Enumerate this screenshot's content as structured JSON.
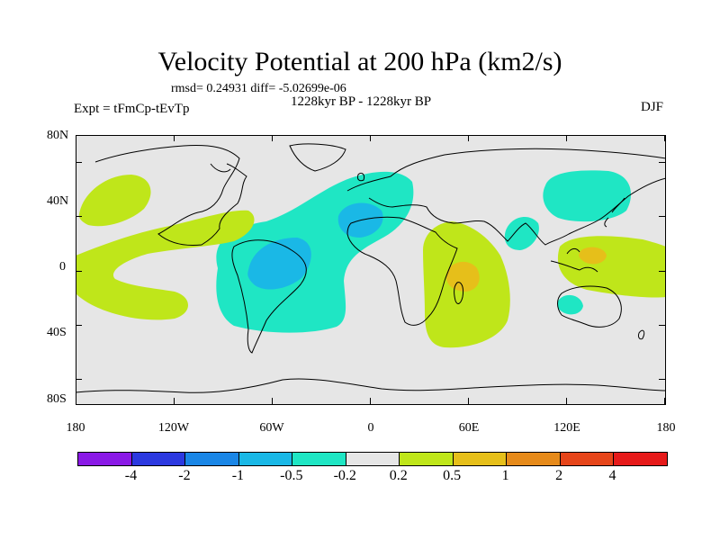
{
  "title": "Velocity Potential at 200 hPa (km2/s)",
  "stats": "rmsd= 0.24931 diff= -5.02699e-06",
  "period": "1228kyr BP - 1228kyr BP",
  "expt": "Expt = tFmCp-tEvTp",
  "season": "DJF",
  "axes": {
    "y_labels": [
      "80N",
      "40N",
      "0",
      "40S",
      "80S"
    ],
    "x_labels": [
      "180",
      "120W",
      "60W",
      "0",
      "60E",
      "120E",
      "180"
    ]
  },
  "colorbar": {
    "colors": [
      "#8a19e6",
      "#2c39e0",
      "#1a86e6",
      "#1ab8e6",
      "#1fe6c4",
      "#e6e6e6",
      "#bfe61a",
      "#e6bf1a",
      "#e68a1a",
      "#e6451a",
      "#e61a1a"
    ],
    "labels": [
      "-4",
      "-2",
      "-1",
      "-0.5",
      "-0.2",
      "0.2",
      "0.5",
      "1",
      "2",
      "4"
    ]
  },
  "map_colors": {
    "background": "#e6e6e6",
    "neg_weak": "#1fe6c4",
    "neg_mid": "#1ab8e6",
    "pos_weak": "#bfe61a",
    "pos_mid": "#e6bf1a",
    "coast": "#000000"
  }
}
